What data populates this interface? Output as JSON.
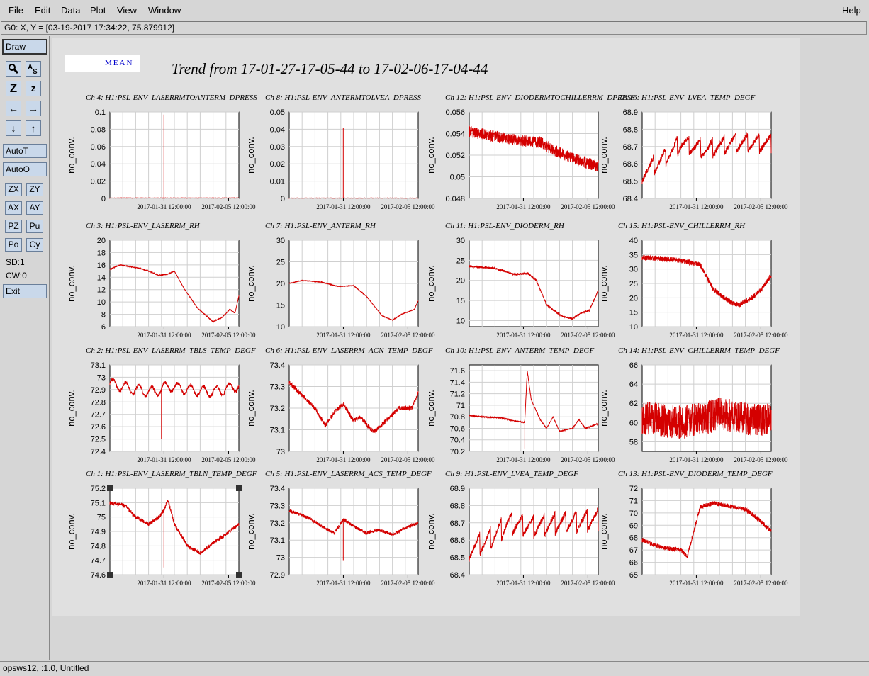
{
  "menu": {
    "items": [
      "File",
      "Edit",
      "Data",
      "Plot",
      "View",
      "Window"
    ],
    "help": "Help"
  },
  "status_line": "G0: X, Y = [03-19-2017 17:34:22, 75.879912]",
  "toolbar": {
    "draw": "Draw",
    "autoT": "AutoT",
    "autoO": "AutoO",
    "zx": "ZX",
    "zy": "ZY",
    "ax": "AX",
    "ay": "AY",
    "pz": "PZ",
    "pu": "Pu",
    "po": "Po",
    "cy": "Cy",
    "sd": "SD:1",
    "cw": "CW:0",
    "exit": "Exit"
  },
  "legend": {
    "label": "MEAN",
    "color": "#d40000"
  },
  "title": "Trend from 17-01-27-17-05-44 to 17-02-06-17-04-44",
  "footer": "opsws12, :1.0, Untitled",
  "chart_data": [
    {
      "type": "line",
      "title": "Ch 4: H1:PSL-ENV_LASERRMTOANTERM_DPRESS",
      "ylabel": "no_conv.",
      "yticks": [
        "0",
        "0.02",
        "0.04",
        "0.06",
        "0.08",
        "0.1"
      ],
      "ylim": [
        0,
        0.1
      ],
      "xticks": [
        "2017-01-31 12:00:00",
        "2017-02-05 12:00:00"
      ],
      "series": [
        {
          "shape": "spike",
          "base": 0.0005,
          "noise": 0.0005,
          "spike_at": 0.42,
          "spike_to": 0.097
        }
      ]
    },
    {
      "type": "line",
      "title": "Ch 8: H1:PSL-ENV_ANTERMTOLVEA_DPRESS",
      "ylabel": "no_conv.",
      "yticks": [
        "0",
        "0.01",
        "0.02",
        "0.03",
        "0.04",
        "0.05"
      ],
      "ylim": [
        0,
        0.05
      ],
      "xticks": [
        "2017-01-31 12:00:00",
        "2017-02-05 12:00:00"
      ],
      "series": [
        {
          "shape": "spike",
          "base": 0.0002,
          "noise": 0.0002,
          "spike_at": 0.42,
          "spike_to": 0.041
        }
      ]
    },
    {
      "type": "line",
      "title": "Ch 12: H1:PSL-ENV_DIODERMTOCHILLERRM_DPRESS",
      "ylabel": "no_conv.",
      "yticks": [
        "0.048",
        "0.05",
        "0.052",
        "0.054",
        "0.056"
      ],
      "ylim": [
        0.048,
        0.056
      ],
      "xticks": [
        "2017-01-31 12:00:00",
        "2017-02-05 12:00:00"
      ],
      "series": [
        {
          "shape": "points",
          "points": [
            [
              0,
              0.0542
            ],
            [
              0.3,
              0.0535
            ],
            [
              0.55,
              0.0532
            ],
            [
              0.65,
              0.0525
            ],
            [
              0.75,
              0.052
            ],
            [
              0.85,
              0.0515
            ],
            [
              1,
              0.051
            ]
          ],
          "noise": 0.0011
        }
      ]
    },
    {
      "type": "line",
      "title": "Ch 16: H1:PSL-ENV_LVEA_TEMP_DEGF",
      "ylabel": "no_conv.",
      "yticks": [
        "68.4",
        "68.5",
        "68.6",
        "68.7",
        "68.8",
        "68.9"
      ],
      "ylim": [
        68.4,
        68.9
      ],
      "xticks": [
        "2017-01-31 12:00:00",
        "2017-02-05 12:00:00"
      ],
      "series": [
        {
          "shape": "sawtooth",
          "points": [
            [
              0,
              68.55
            ],
            [
              0.15,
              68.62
            ],
            [
              0.3,
              68.72
            ],
            [
              0.5,
              68.68
            ],
            [
              0.7,
              68.72
            ],
            [
              1,
              68.72
            ]
          ],
          "amp": 0.1,
          "cycles": 11,
          "noise": 0.03
        }
      ]
    },
    {
      "type": "line",
      "title": "Ch 3: H1:PSL-ENV_LASERRM_RH",
      "ylabel": "no_conv.",
      "yticks": [
        "6",
        "8",
        "10",
        "12",
        "14",
        "16",
        "18",
        "20"
      ],
      "ylim": [
        6,
        20
      ],
      "xticks": [
        "2017-01-31 12:00:00",
        "2017-02-05 12:00:00"
      ],
      "series": [
        {
          "shape": "points",
          "points": [
            [
              0,
              15.3
            ],
            [
              0.08,
              16
            ],
            [
              0.22,
              15.5
            ],
            [
              0.3,
              15
            ],
            [
              0.38,
              14.3
            ],
            [
              0.45,
              14.5
            ],
            [
              0.5,
              15
            ],
            [
              0.58,
              12
            ],
            [
              0.68,
              9
            ],
            [
              0.8,
              6.8
            ],
            [
              0.87,
              7.5
            ],
            [
              0.93,
              8.8
            ],
            [
              0.97,
              8.2
            ],
            [
              1,
              11
            ]
          ],
          "noise": 0.1
        }
      ]
    },
    {
      "type": "line",
      "title": "Ch 7: H1:PSL-ENV_ANTERM_RH",
      "ylabel": "no_conv.",
      "yticks": [
        "10",
        "15",
        "20",
        "25",
        "30"
      ],
      "ylim": [
        10,
        30
      ],
      "xticks": [
        "2017-01-31 12:00:00",
        "2017-02-05 12:00:00"
      ],
      "series": [
        {
          "shape": "points",
          "points": [
            [
              0,
              20
            ],
            [
              0.1,
              20.7
            ],
            [
              0.25,
              20.3
            ],
            [
              0.38,
              19.3
            ],
            [
              0.5,
              19.5
            ],
            [
              0.6,
              17
            ],
            [
              0.72,
              12.5
            ],
            [
              0.8,
              11.5
            ],
            [
              0.88,
              13
            ],
            [
              0.93,
              13.5
            ],
            [
              0.97,
              14
            ],
            [
              1,
              16
            ]
          ],
          "noise": 0.1
        }
      ]
    },
    {
      "type": "line",
      "title": "Ch 11: H1:PSL-ENV_DIODERM_RH",
      "ylabel": "no_conv.",
      "yticks": [
        "10",
        "15",
        "20",
        "25",
        "30"
      ],
      "ylim": [
        8.5,
        30
      ],
      "xticks": [
        "2017-01-31 12:00:00",
        "2017-02-05 12:00:00"
      ],
      "series": [
        {
          "shape": "points",
          "points": [
            [
              0,
              23.5
            ],
            [
              0.2,
              23
            ],
            [
              0.35,
              21.5
            ],
            [
              0.45,
              21.8
            ],
            [
              0.52,
              20
            ],
            [
              0.6,
              14
            ],
            [
              0.72,
              11
            ],
            [
              0.8,
              10.5
            ],
            [
              0.87,
              12
            ],
            [
              0.93,
              12.5
            ],
            [
              1,
              17.5
            ]
          ],
          "noise": 0.45
        }
      ]
    },
    {
      "type": "line",
      "title": "Ch 15: H1:PSL-ENV_CHILLERRM_RH",
      "ylabel": "no_conv.",
      "yticks": [
        "10",
        "15",
        "20",
        "25",
        "30",
        "35",
        "40"
      ],
      "ylim": [
        10,
        40
      ],
      "xticks": [
        "2017-01-31 12:00:00",
        "2017-02-05 12:00:00"
      ],
      "series": [
        {
          "shape": "points",
          "points": [
            [
              0,
              34
            ],
            [
              0.2,
              33.5
            ],
            [
              0.35,
              32.5
            ],
            [
              0.45,
              31.5
            ],
            [
              0.55,
              23
            ],
            [
              0.68,
              18.5
            ],
            [
              0.75,
              17.5
            ],
            [
              0.85,
              20
            ],
            [
              0.93,
              23
            ],
            [
              1,
              28
            ]
          ],
          "noise": 1.8
        }
      ]
    },
    {
      "type": "line",
      "title": "Ch 2: H1:PSL-ENV_LASERRM_TBLS_TEMP_DEGF",
      "ylabel": "no_conv.",
      "yticks": [
        "72.4",
        "72.5",
        "72.6",
        "72.7",
        "72.8",
        "72.9",
        "73",
        "73.1"
      ],
      "ylim": [
        72.4,
        73.1
      ],
      "xticks": [
        "2017-01-31 12:00:00",
        "2017-02-05 12:00:00"
      ],
      "series": [
        {
          "shape": "wave",
          "points": [
            [
              0,
              72.95
            ],
            [
              0.2,
              72.9
            ],
            [
              0.35,
              72.88
            ],
            [
              0.45,
              72.93
            ],
            [
              0.6,
              72.9
            ],
            [
              0.8,
              72.88
            ],
            [
              1,
              72.93
            ]
          ],
          "amp": 0.04,
          "cycles": 10,
          "noise": 0.025,
          "spike_at": 0.4,
          "spike_to": 72.5
        }
      ]
    },
    {
      "type": "line",
      "title": "Ch 6: H1:PSL-ENV_LASERRM_ACN_TEMP_DEGF",
      "ylabel": "no_conv.",
      "yticks": [
        "73",
        "73.1",
        "73.2",
        "73.3",
        "73.4"
      ],
      "ylim": [
        73,
        73.4
      ],
      "xticks": [
        "2017-01-31 12:00:00",
        "2017-02-05 12:00:00"
      ],
      "series": [
        {
          "shape": "points",
          "points": [
            [
              0,
              73.32
            ],
            [
              0.1,
              73.26
            ],
            [
              0.2,
              73.2
            ],
            [
              0.28,
              73.12
            ],
            [
              0.35,
              73.18
            ],
            [
              0.42,
              73.22
            ],
            [
              0.5,
              73.14
            ],
            [
              0.55,
              73.16
            ],
            [
              0.65,
              73.09
            ],
            [
              0.75,
              73.14
            ],
            [
              0.85,
              73.2
            ],
            [
              0.95,
              73.2
            ],
            [
              1,
              73.27
            ]
          ],
          "noise": 0.02
        }
      ]
    },
    {
      "type": "line",
      "title": "Ch 10: H1:PSL-ENV_ANTERM_TEMP_DEGF",
      "ylabel": "no_conv.",
      "yticks": [
        "70.2",
        "70.4",
        "70.6",
        "70.8",
        "71",
        "71.2",
        "71.4",
        "71.6"
      ],
      "ylim": [
        70.2,
        71.7
      ],
      "xticks": [
        "2017-01-31 12:00:00",
        "2017-02-05 12:00:00"
      ],
      "series": [
        {
          "shape": "points",
          "points": [
            [
              0,
              70.82
            ],
            [
              0.1,
              70.8
            ],
            [
              0.25,
              70.78
            ],
            [
              0.35,
              70.73
            ],
            [
              0.43,
              70.7
            ],
            [
              0.45,
              71.6
            ],
            [
              0.48,
              71.1
            ],
            [
              0.55,
              70.75
            ],
            [
              0.6,
              70.6
            ],
            [
              0.65,
              70.8
            ],
            [
              0.7,
              70.55
            ],
            [
              0.8,
              70.6
            ],
            [
              0.85,
              70.75
            ],
            [
              0.9,
              70.6
            ],
            [
              1,
              70.68
            ]
          ],
          "noise": 0.02,
          "spike_at": 0.43,
          "spike_to": 70.25
        }
      ]
    },
    {
      "type": "line",
      "title": "Ch 14: H1:PSL-ENV_CHILLERRM_TEMP_DEGF",
      "ylabel": "no_conv.",
      "yticks": [
        "58",
        "60",
        "62",
        "64",
        "66"
      ],
      "ylim": [
        57,
        66
      ],
      "xticks": [
        "2017-01-31 12:00:00",
        "2017-02-05 12:00:00"
      ],
      "series": [
        {
          "shape": "points",
          "points": [
            [
              0,
              60.5
            ],
            [
              0.3,
              60
            ],
            [
              0.5,
              60.5
            ],
            [
              0.6,
              61
            ],
            [
              0.75,
              60.5
            ],
            [
              1,
              60.2
            ]
          ],
          "noise": 3.5
        }
      ]
    },
    {
      "type": "line",
      "title": "Ch 1: H1:PSL-ENV_LASERRM_TBLN_TEMP_DEGF",
      "ylabel": "no_conv.",
      "yticks": [
        "74.6",
        "74.7",
        "74.8",
        "74.9",
        "75",
        "75.1",
        "75.2"
      ],
      "ylim": [
        74.6,
        75.2
      ],
      "xticks": [
        "2017-01-31 12:00:00",
        "2017-02-05 12:00:00"
      ],
      "series": [
        {
          "shape": "points",
          "points": [
            [
              0,
              75.1
            ],
            [
              0.12,
              75.08
            ],
            [
              0.2,
              75.0
            ],
            [
              0.3,
              74.95
            ],
            [
              0.38,
              75.0
            ],
            [
              0.42,
              75.05
            ],
            [
              0.45,
              75.12
            ],
            [
              0.5,
              74.95
            ],
            [
              0.6,
              74.8
            ],
            [
              0.7,
              74.75
            ],
            [
              0.8,
              74.82
            ],
            [
              0.9,
              74.88
            ],
            [
              1,
              74.95
            ]
          ],
          "noise": 0.025,
          "spike_at": 0.42,
          "spike_to": 74.65
        }
      ]
    },
    {
      "type": "line",
      "title": "Ch 5: H1:PSL-ENV_LASERRM_ACS_TEMP_DEGF",
      "ylabel": "no_conv.",
      "yticks": [
        "72.9",
        "73",
        "73.1",
        "73.2",
        "73.3",
        "73.4"
      ],
      "ylim": [
        72.9,
        73.4
      ],
      "xticks": [
        "2017-01-31 12:00:00",
        "2017-02-05 12:00:00"
      ],
      "series": [
        {
          "shape": "points",
          "points": [
            [
              0,
              73.27
            ],
            [
              0.15,
              73.23
            ],
            [
              0.25,
              73.18
            ],
            [
              0.35,
              73.14
            ],
            [
              0.42,
              73.22
            ],
            [
              0.5,
              73.18
            ],
            [
              0.6,
              73.14
            ],
            [
              0.7,
              73.16
            ],
            [
              0.8,
              73.13
            ],
            [
              0.9,
              73.17
            ],
            [
              1,
              73.2
            ]
          ],
          "noise": 0.018,
          "spike_at": 0.42,
          "spike_to": 72.98
        }
      ]
    },
    {
      "type": "line",
      "title": "Ch 9: H1:PSL-ENV_LVEA_TEMP_DEGF",
      "ylabel": "no_conv.",
      "yticks": [
        "68.4",
        "68.5",
        "68.6",
        "68.7",
        "68.8",
        "68.9"
      ],
      "ylim": [
        68.4,
        68.9
      ],
      "xticks": [
        "2017-01-31 12:00:00",
        "2017-02-05 12:00:00"
      ],
      "series": [
        {
          "shape": "sawtooth",
          "points": [
            [
              0,
              68.55
            ],
            [
              0.15,
              68.6
            ],
            [
              0.3,
              68.7
            ],
            [
              0.5,
              68.68
            ],
            [
              0.7,
              68.7
            ],
            [
              1,
              68.72
            ]
          ],
          "amp": 0.12,
          "cycles": 12,
          "noise": 0.03
        }
      ]
    },
    {
      "type": "line",
      "title": "Ch 13: H1:PSL-ENV_DIODERM_TEMP_DEGF",
      "ylabel": "no_conv.",
      "yticks": [
        "65",
        "66",
        "67",
        "68",
        "69",
        "70",
        "71",
        "72"
      ],
      "ylim": [
        65,
        72
      ],
      "xticks": [
        "2017-01-31 12:00:00",
        "2017-02-05 12:00:00"
      ],
      "series": [
        {
          "shape": "points",
          "points": [
            [
              0,
              67.8
            ],
            [
              0.15,
              67.2
            ],
            [
              0.3,
              67.0
            ],
            [
              0.35,
              66.5
            ],
            [
              0.4,
              68.5
            ],
            [
              0.45,
              70.5
            ],
            [
              0.55,
              70.8
            ],
            [
              0.65,
              70.6
            ],
            [
              0.8,
              70.3
            ],
            [
              0.9,
              69.5
            ],
            [
              1,
              68.5
            ]
          ],
          "noise": 0.35
        }
      ]
    }
  ]
}
